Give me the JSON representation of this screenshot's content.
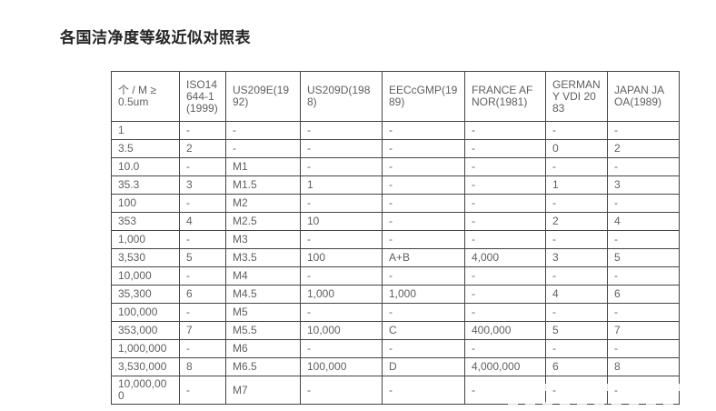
{
  "page": {
    "title": "各国洁净度等级近似对照表"
  },
  "colors": {
    "title_text": "#262626",
    "cell_text": "#5f5f5f",
    "table_border": "#444444",
    "background": "#ffffff"
  },
  "table": {
    "columns": [
      "个 / M ≥ 0.5um",
      "ISO14644-1(1999)",
      "US209E(1992)",
      "US209D(1988)",
      "EECcGMP(1989)",
      "FRANCE AFNOR(1981)",
      "GERMANY VDI 2083",
      "JAPAN JAOA(1989)"
    ],
    "rows": [
      [
        "1",
        "-",
        "-",
        "-",
        "-",
        "-",
        "-",
        "-"
      ],
      [
        "3.5",
        "2",
        "-",
        "-",
        "-",
        "-",
        "0",
        "2"
      ],
      [
        "10.0",
        "-",
        "M1",
        "-",
        "-",
        "-",
        "-",
        "-"
      ],
      [
        "35.3",
        "3",
        "M1.5",
        "1",
        "-",
        "-",
        "1",
        "3"
      ],
      [
        "100",
        "-",
        "M2",
        "-",
        "-",
        "-",
        "-",
        "-"
      ],
      [
        "353",
        "4",
        "M2.5",
        "10",
        "-",
        "-",
        "2",
        "4"
      ],
      [
        "1,000",
        "-",
        "M3",
        "-",
        "-",
        "-",
        "-",
        "-"
      ],
      [
        "3,530",
        "5",
        "M3.5",
        "100",
        "A+B",
        "4,000",
        "3",
        "5"
      ],
      [
        "10,000",
        "-",
        "M4",
        "-",
        "-",
        "-",
        "-",
        "-"
      ],
      [
        "35,300",
        "6",
        "M4.5",
        "1,000",
        "1,000",
        "-",
        "4",
        "6"
      ],
      [
        "100,000",
        "-",
        "M5",
        "-",
        "-",
        "-",
        "-",
        "-"
      ],
      [
        "353,000",
        "7",
        "M5.5",
        "10,000",
        "C",
        "400,000",
        "5",
        "7"
      ],
      [
        "1,000,000",
        "-",
        "M6",
        "-",
        "-",
        "-",
        "-",
        "-"
      ],
      [
        "3,530,000",
        "8",
        "M6.5",
        "100,000",
        "D",
        "4,000,000",
        "6",
        "8"
      ],
      [
        "10,000,000",
        "-",
        "M7",
        "-",
        "-",
        "-",
        "-",
        "-"
      ]
    ]
  }
}
